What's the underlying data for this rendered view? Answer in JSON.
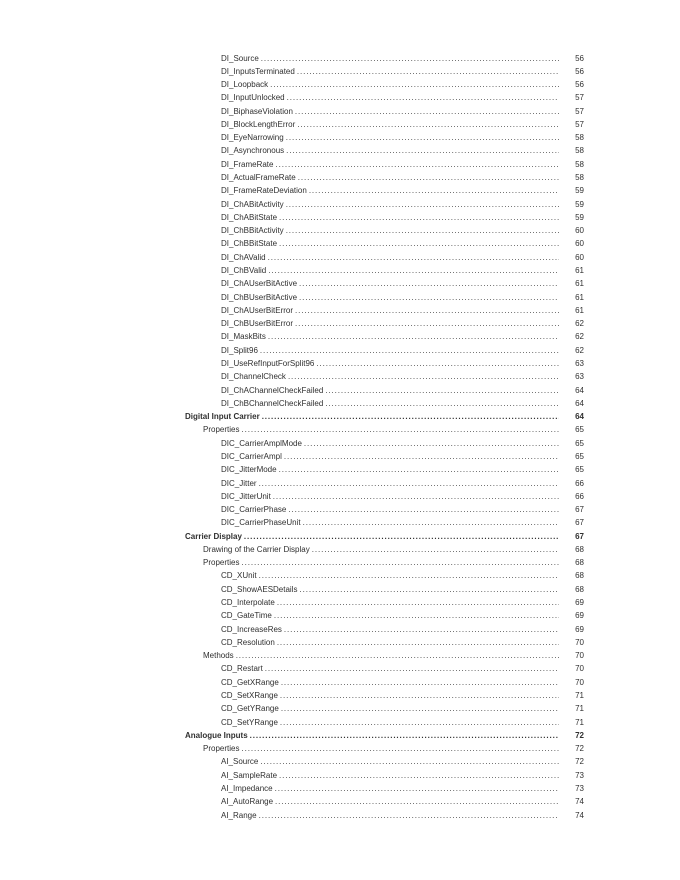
{
  "colors": {
    "background": "#ffffff",
    "text": "#303030"
  },
  "toc": {
    "entries": [
      {
        "label": "DI_Source",
        "page": "56",
        "level": 3,
        "bold": false
      },
      {
        "label": "DI_InputsTerminated",
        "page": "56",
        "level": 3,
        "bold": false
      },
      {
        "label": "DI_Loopback",
        "page": "56",
        "level": 3,
        "bold": false
      },
      {
        "label": "DI_InputUnlocked",
        "page": "57",
        "level": 3,
        "bold": false
      },
      {
        "label": "DI_BiphaseViolation",
        "page": "57",
        "level": 3,
        "bold": false
      },
      {
        "label": "DI_BlockLengthError",
        "page": "57",
        "level": 3,
        "bold": false
      },
      {
        "label": "DI_EyeNarrowing",
        "page": "58",
        "level": 3,
        "bold": false
      },
      {
        "label": "DI_Asynchronous",
        "page": "58",
        "level": 3,
        "bold": false
      },
      {
        "label": "DI_FrameRate",
        "page": "58",
        "level": 3,
        "bold": false
      },
      {
        "label": "DI_ActualFrameRate",
        "page": "58",
        "level": 3,
        "bold": false
      },
      {
        "label": "DI_FrameRateDeviation",
        "page": "59",
        "level": 3,
        "bold": false
      },
      {
        "label": "DI_ChABitActivity",
        "page": "59",
        "level": 3,
        "bold": false
      },
      {
        "label": "DI_ChABitState",
        "page": "59",
        "level": 3,
        "bold": false
      },
      {
        "label": "DI_ChBBitActivity",
        "page": "60",
        "level": 3,
        "bold": false
      },
      {
        "label": "DI_ChBBitState",
        "page": "60",
        "level": 3,
        "bold": false
      },
      {
        "label": "DI_ChAValid",
        "page": "60",
        "level": 3,
        "bold": false
      },
      {
        "label": "DI_ChBValid",
        "page": "61",
        "level": 3,
        "bold": false
      },
      {
        "label": "DI_ChAUserBitActive",
        "page": "61",
        "level": 3,
        "bold": false
      },
      {
        "label": "DI_ChBUserBitActive",
        "page": "61",
        "level": 3,
        "bold": false
      },
      {
        "label": "DI_ChAUserBitError",
        "page": "61",
        "level": 3,
        "bold": false
      },
      {
        "label": "DI_ChBUserBitError",
        "page": "62",
        "level": 3,
        "bold": false
      },
      {
        "label": "DI_MaskBits",
        "page": "62",
        "level": 3,
        "bold": false
      },
      {
        "label": "DI_Split96",
        "page": "62",
        "level": 3,
        "bold": false
      },
      {
        "label": "DI_UseRefInputForSplit96",
        "page": "63",
        "level": 3,
        "bold": false
      },
      {
        "label": "DI_ChannelCheck",
        "page": "63",
        "level": 3,
        "bold": false
      },
      {
        "label": "DI_ChAChannelCheckFailed",
        "page": "64",
        "level": 3,
        "bold": false
      },
      {
        "label": "DI_ChBChannelCheckFailed",
        "page": "64",
        "level": 3,
        "bold": false
      },
      {
        "label": "Digital Input Carrier",
        "page": "64",
        "level": 1,
        "bold": true
      },
      {
        "label": "Properties",
        "page": "65",
        "level": 2,
        "bold": false
      },
      {
        "label": "DIC_CarrierAmplMode",
        "page": "65",
        "level": 3,
        "bold": false
      },
      {
        "label": "DIC_CarrierAmpl",
        "page": "65",
        "level": 3,
        "bold": false
      },
      {
        "label": "DIC_JitterMode",
        "page": "65",
        "level": 3,
        "bold": false
      },
      {
        "label": "DIC_Jitter",
        "page": "66",
        "level": 3,
        "bold": false
      },
      {
        "label": "DIC_JitterUnit",
        "page": "66",
        "level": 3,
        "bold": false
      },
      {
        "label": "DIC_CarrierPhase",
        "page": "67",
        "level": 3,
        "bold": false
      },
      {
        "label": "DIC_CarrierPhaseUnit",
        "page": "67",
        "level": 3,
        "bold": false
      },
      {
        "label": "Carrier Display",
        "page": "67",
        "level": 1,
        "bold": true
      },
      {
        "label": "Drawing of the Carrier Display",
        "page": "68",
        "level": 2,
        "bold": false
      },
      {
        "label": "Properties",
        "page": "68",
        "level": 2,
        "bold": false
      },
      {
        "label": "CD_XUnit",
        "page": "68",
        "level": 3,
        "bold": false
      },
      {
        "label": "CD_ShowAESDetails",
        "page": "68",
        "level": 3,
        "bold": false
      },
      {
        "label": "CD_Interpolate",
        "page": "69",
        "level": 3,
        "bold": false
      },
      {
        "label": "CD_GateTime",
        "page": "69",
        "level": 3,
        "bold": false
      },
      {
        "label": "CD_IncreaseRes",
        "page": "69",
        "level": 3,
        "bold": false
      },
      {
        "label": "CD_Resolution",
        "page": "70",
        "level": 3,
        "bold": false
      },
      {
        "label": "Methods",
        "page": "70",
        "level": 2,
        "bold": false
      },
      {
        "label": "CD_Restart",
        "page": "70",
        "level": 3,
        "bold": false
      },
      {
        "label": "CD_GetXRange",
        "page": "70",
        "level": 3,
        "bold": false
      },
      {
        "label": "CD_SetXRange",
        "page": "71",
        "level": 3,
        "bold": false
      },
      {
        "label": "CD_GetYRange",
        "page": "71",
        "level": 3,
        "bold": false
      },
      {
        "label": "CD_SetYRange",
        "page": "71",
        "level": 3,
        "bold": false
      },
      {
        "label": "Analogue Inputs",
        "page": "72",
        "level": 1,
        "bold": true
      },
      {
        "label": "Properties",
        "page": "72",
        "level": 2,
        "bold": false
      },
      {
        "label": "AI_Source",
        "page": "72",
        "level": 3,
        "bold": false
      },
      {
        "label": "AI_SampleRate",
        "page": "73",
        "level": 3,
        "bold": false
      },
      {
        "label": "AI_Impedance",
        "page": "73",
        "level": 3,
        "bold": false
      },
      {
        "label": "AI_AutoRange",
        "page": "74",
        "level": 3,
        "bold": false
      },
      {
        "label": "AI_Range",
        "page": "74",
        "level": 3,
        "bold": false
      }
    ]
  }
}
